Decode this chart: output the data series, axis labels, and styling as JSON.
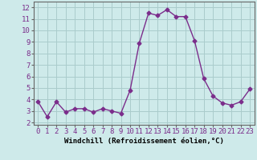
{
  "x": [
    0,
    1,
    2,
    3,
    4,
    5,
    6,
    7,
    8,
    9,
    10,
    11,
    12,
    13,
    14,
    15,
    16,
    17,
    18,
    19,
    20,
    21,
    22,
    23
  ],
  "y": [
    3.8,
    2.5,
    3.8,
    2.9,
    3.2,
    3.2,
    2.9,
    3.2,
    3.0,
    2.8,
    4.8,
    8.9,
    11.5,
    11.3,
    11.8,
    11.2,
    11.2,
    9.1,
    5.8,
    4.3,
    3.7,
    3.5,
    3.8,
    4.9
  ],
  "line_color": "#7b2d8b",
  "marker": "D",
  "markersize": 2.5,
  "linewidth": 1.0,
  "bg_color": "#ceeaea",
  "grid_color": "#aacccc",
  "xlabel": "Windchill (Refroidissement éolien,°C)",
  "ylabel_ticks": [
    2,
    3,
    4,
    5,
    6,
    7,
    8,
    9,
    10,
    11,
    12
  ],
  "xlim": [
    -0.5,
    23.5
  ],
  "ylim": [
    1.8,
    12.5
  ],
  "xticks": [
    0,
    1,
    2,
    3,
    4,
    5,
    6,
    7,
    8,
    9,
    10,
    11,
    12,
    13,
    14,
    15,
    16,
    17,
    18,
    19,
    20,
    21,
    22,
    23
  ],
  "tick_fontsize": 6.5,
  "xlabel_fontsize": 6.5
}
